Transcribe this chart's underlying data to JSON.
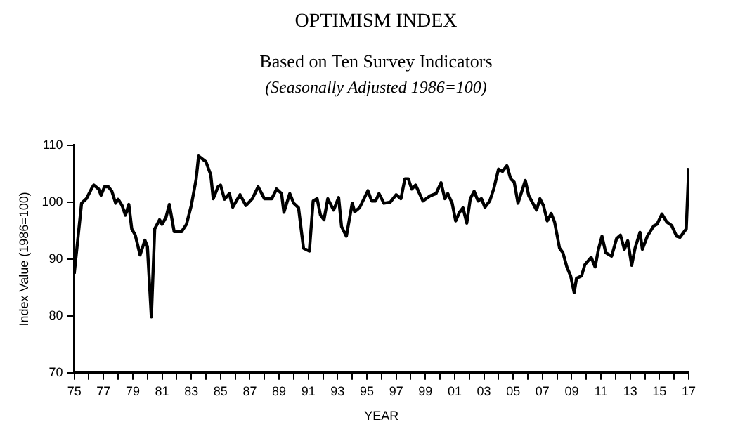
{
  "chart_data": {
    "type": "line",
    "title": "OPTIMISM INDEX",
    "subtitle": "Based on Ten Survey Indicators\n(Seasonally Adjusted 1986=100)",
    "xlabel": "YEAR",
    "ylabel": "Index Value (1986=100)",
    "series": [
      {
        "color": "#000000",
        "x": [
          1975.0,
          1975.5,
          1975.83,
          1976.17,
          1976.33,
          1976.67,
          1976.83,
          1977.07,
          1977.33,
          1977.57,
          1977.83,
          1978.0,
          1978.27,
          1978.5,
          1978.73,
          1978.93,
          1979.17,
          1979.5,
          1979.83,
          1980.0,
          1980.27,
          1980.5,
          1980.83,
          1981.0,
          1981.27,
          1981.5,
          1981.83,
          1982.33,
          1982.67,
          1983.0,
          1983.33,
          1983.5,
          1984.0,
          1984.33,
          1984.5,
          1984.83,
          1985.0,
          1985.27,
          1985.6,
          1985.83,
          1986.33,
          1986.73,
          1987.17,
          1987.57,
          1988.0,
          1988.5,
          1988.83,
          1989.17,
          1989.33,
          1989.73,
          1990.0,
          1990.33,
          1990.67,
          1991.07,
          1991.33,
          1991.6,
          1991.83,
          1992.07,
          1992.33,
          1992.73,
          1993.07,
          1993.27,
          1993.6,
          1994.0,
          1994.17,
          1994.5,
          1995.07,
          1995.33,
          1995.6,
          1995.83,
          1996.17,
          1996.6,
          1997.0,
          1997.33,
          1997.6,
          1997.83,
          1998.07,
          1998.33,
          1998.83,
          1999.33,
          1999.73,
          2000.07,
          2000.33,
          2000.53,
          2000.83,
          2001.07,
          2001.33,
          2001.57,
          2001.83,
          2002.07,
          2002.33,
          2002.6,
          2002.83,
          2003.07,
          2003.4,
          2003.67,
          2004.0,
          2004.27,
          2004.57,
          2004.83,
          2005.07,
          2005.33,
          2005.83,
          2006.07,
          2006.6,
          2006.83,
          2007.07,
          2007.33,
          2007.6,
          2007.83,
          2008.17,
          2008.4,
          2008.67,
          2008.93,
          2009.17,
          2009.33,
          2009.67,
          2009.9,
          2010.33,
          2010.6,
          2010.83,
          2011.07,
          2011.33,
          2011.73,
          2012.07,
          2012.33,
          2012.6,
          2012.83,
          2013.1,
          2013.33,
          2013.67,
          2013.83,
          2014.17,
          2014.6,
          2014.83,
          2015.17,
          2015.5,
          2015.83,
          2016.17,
          2016.4,
          2016.83,
          2017.0
        ],
        "values": [
          87.4,
          99.8,
          100.6,
          102.3,
          103,
          102.3,
          101.2,
          102.7,
          102.7,
          101.9,
          99.8,
          100.5,
          99.4,
          97.7,
          99.6,
          95.3,
          94.2,
          90.7,
          93.3,
          92.2,
          79.8,
          95.3,
          96.9,
          96.1,
          97.3,
          99.6,
          94.8,
          94.8,
          96.1,
          99.4,
          104,
          108.1,
          107.1,
          104.8,
          100.6,
          102.7,
          103,
          100.5,
          101.5,
          99.1,
          101.3,
          99.4,
          100.6,
          102.7,
          100.6,
          100.6,
          102.3,
          101.5,
          98.2,
          101.5,
          99.8,
          99,
          91.9,
          91.4,
          100.2,
          100.6,
          97.7,
          96.9,
          100.6,
          98.6,
          100.8,
          95.7,
          94,
          99.8,
          98.3,
          99,
          102,
          100.2,
          100.2,
          101.5,
          99.8,
          100,
          101.3,
          100.6,
          104.1,
          104.1,
          102.3,
          103,
          100.2,
          101.1,
          101.5,
          103.4,
          100.6,
          101.5,
          99.8,
          96.7,
          98.2,
          99,
          96.3,
          100.6,
          101.9,
          100.2,
          100.6,
          99.1,
          100.2,
          102.3,
          105.8,
          105.4,
          106.4,
          104.1,
          103.5,
          99.8,
          103.8,
          101.1,
          98.6,
          100.6,
          99.4,
          96.7,
          98,
          96.5,
          91.9,
          91.1,
          88.6,
          87,
          84.1,
          86.6,
          87,
          89,
          90.3,
          88.6,
          91.7,
          94,
          91.1,
          90.5,
          93.6,
          94.2,
          91.7,
          93.2,
          88.9,
          91.9,
          94.7,
          91.7,
          94,
          95.8,
          96.1,
          97.9,
          96.5,
          95.9,
          94,
          93.8,
          95.3,
          106
        ]
      }
    ],
    "xlim": [
      1975,
      2017
    ],
    "xticks": [
      {
        "value": 1975,
        "label": "75"
      },
      {
        "value": 1976,
        "label": null
      },
      {
        "value": 1977,
        "label": "77"
      },
      {
        "value": 1978,
        "label": null
      },
      {
        "value": 1979,
        "label": "79"
      },
      {
        "value": 1980,
        "label": null
      },
      {
        "value": 1981,
        "label": "81"
      },
      {
        "value": 1982,
        "label": null
      },
      {
        "value": 1983,
        "label": "83"
      },
      {
        "value": 1984,
        "label": null
      },
      {
        "value": 1985,
        "label": "85"
      },
      {
        "value": 1986,
        "label": null
      },
      {
        "value": 1987,
        "label": "87"
      },
      {
        "value": 1988,
        "label": null
      },
      {
        "value": 1989,
        "label": "89"
      },
      {
        "value": 1990,
        "label": null
      },
      {
        "value": 1991,
        "label": "91"
      },
      {
        "value": 1992,
        "label": null
      },
      {
        "value": 1993,
        "label": "93"
      },
      {
        "value": 1994,
        "label": null
      },
      {
        "value": 1995,
        "label": "95"
      },
      {
        "value": 1996,
        "label": null
      },
      {
        "value": 1997,
        "label": "97"
      },
      {
        "value": 1998,
        "label": null
      },
      {
        "value": 1999,
        "label": "99"
      },
      {
        "value": 2000,
        "label": null
      },
      {
        "value": 2001,
        "label": "01"
      },
      {
        "value": 2002,
        "label": null
      },
      {
        "value": 2003,
        "label": "03"
      },
      {
        "value": 2004,
        "label": null
      },
      {
        "value": 2005,
        "label": "05"
      },
      {
        "value": 2006,
        "label": null
      },
      {
        "value": 2007,
        "label": "07"
      },
      {
        "value": 2008,
        "label": null
      },
      {
        "value": 2009,
        "label": "09"
      },
      {
        "value": 2010,
        "label": null
      },
      {
        "value": 2011,
        "label": "11"
      },
      {
        "value": 2012,
        "label": null
      },
      {
        "value": 2013,
        "label": "13"
      },
      {
        "value": 2014,
        "label": null
      },
      {
        "value": 2015,
        "label": "15"
      },
      {
        "value": 2016,
        "label": null
      },
      {
        "value": 2017,
        "label": "17"
      }
    ],
    "ylim": [
      70,
      110
    ],
    "yticks": [
      70,
      80,
      90,
      100,
      110
    ],
    "grid": false,
    "legend": false,
    "marker": "none",
    "line_style": "solid"
  }
}
